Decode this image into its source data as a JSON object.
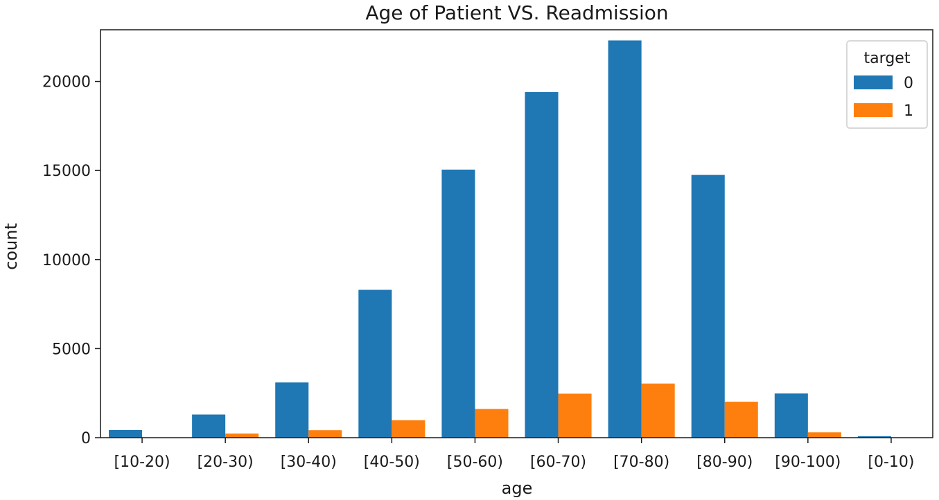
{
  "chart_data": {
    "type": "bar",
    "title": "Age of Patient VS. Readmission",
    "xlabel": "age",
    "ylabel": "count",
    "ylim": [
      0,
      22900
    ],
    "yticks": [
      0,
      5000,
      10000,
      15000,
      20000
    ],
    "categories": [
      "[10-20)",
      "[20-30)",
      "[30-40)",
      "[40-50)",
      "[50-60)",
      "[60-70)",
      "[70-80)",
      "[80-90)",
      "[90-100)",
      "[0-10)"
    ],
    "legend": {
      "title": "target",
      "placement": "top-right"
    },
    "series": [
      {
        "name": "0",
        "color": "#1f77b4",
        "values": [
          430,
          1300,
          3100,
          8300,
          15050,
          19400,
          22300,
          14750,
          2480,
          80
        ]
      },
      {
        "name": "1",
        "color": "#ff7f0e",
        "values": [
          0,
          230,
          420,
          980,
          1610,
          2470,
          3040,
          2020,
          300,
          0
        ]
      }
    ],
    "grid": false
  }
}
